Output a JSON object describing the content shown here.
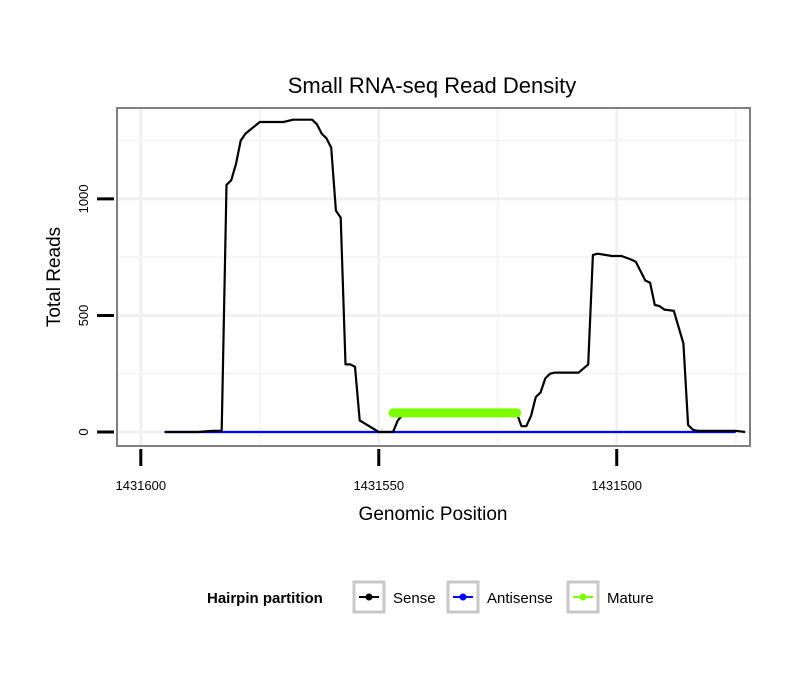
{
  "chart_data": {
    "type": "line",
    "title": "Small RNA-seq Read Density",
    "xlabel": "Genomic Position",
    "ylabel": "Total Reads",
    "x_reversed": true,
    "xlim": [
      1431605,
      1431472
    ],
    "ylim": [
      -60,
      1390
    ],
    "x_ticks": [
      1431600,
      1431550,
      1431500
    ],
    "x_tick_labels": [
      "1431600",
      "1431550",
      "1431500"
    ],
    "y_ticks": [
      0,
      500,
      1000
    ],
    "y_tick_labels": [
      "0",
      "500",
      "1000"
    ],
    "grid": true,
    "legend": {
      "title": "Hairpin partition",
      "position": "bottom",
      "entries": [
        "Sense",
        "Antisense",
        "Mature"
      ]
    },
    "series": [
      {
        "name": "Sense",
        "color": "#000000",
        "x": [
          1431595,
          1431588,
          1431585,
          1431584,
          1431583,
          1431582,
          1431581,
          1431580,
          1431579,
          1431578,
          1431575,
          1431572,
          1431570,
          1431568,
          1431566,
          1431564,
          1431563,
          1431562,
          1431561,
          1431560,
          1431559,
          1431558,
          1431557,
          1431556,
          1431555,
          1431554,
          1431550,
          1431547,
          1431546,
          1431544,
          1431543,
          1431521,
          1431520,
          1431519,
          1431518,
          1431517,
          1431516,
          1431515,
          1431514,
          1431513,
          1431512,
          1431508,
          1431506,
          1431505,
          1431504,
          1431501,
          1431499,
          1431497,
          1431496,
          1431494,
          1431493,
          1431492,
          1431491,
          1431490,
          1431488,
          1431486,
          1431485,
          1431484,
          1431483,
          1431482,
          1431481,
          1431480,
          1431478,
          1431475,
          1431473
        ],
        "values": [
          0,
          0,
          5,
          5,
          5,
          1060,
          1080,
          1150,
          1250,
          1280,
          1330,
          1330,
          1330,
          1340,
          1340,
          1340,
          1320,
          1280,
          1260,
          1220,
          950,
          920,
          290,
          290,
          280,
          50,
          0,
          0,
          50,
          95,
          95,
          80,
          25,
          25,
          70,
          150,
          170,
          230,
          250,
          255,
          255,
          255,
          290,
          760,
          765,
          755,
          755,
          740,
          730,
          650,
          640,
          545,
          540,
          525,
          520,
          380,
          30,
          10,
          5,
          5,
          5,
          5,
          5,
          5,
          0
        ]
      },
      {
        "name": "Antisense",
        "color": "#0000ff",
        "x": [
          1431595,
          1431475
        ],
        "values": [
          0,
          0
        ]
      },
      {
        "name": "Mature",
        "color": "#7cfc00",
        "x": [
          1431547,
          1431544,
          1431535,
          1431525,
          1431521
        ],
        "values": [
          82,
          82,
          82,
          82,
          82
        ]
      }
    ]
  }
}
